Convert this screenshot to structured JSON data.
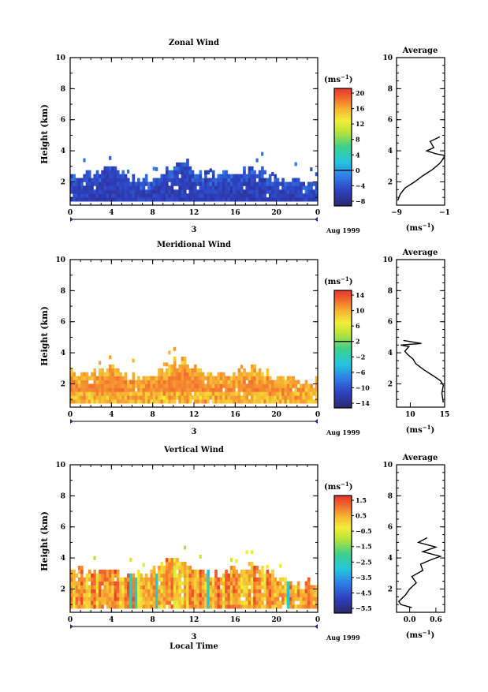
{
  "chart_data": [
    {
      "type": "heatmap",
      "title": "Zonal Wind",
      "ylabel": "Height (km)",
      "xticks": [
        "0",
        "4",
        "8",
        "12",
        "16",
        "20",
        "0"
      ],
      "yticks": [
        "2",
        "4",
        "6",
        "8",
        "10"
      ],
      "xlim": [
        0,
        24
      ],
      "ylim": [
        0.5,
        10
      ],
      "date_day": "3",
      "date_label": "Aug 1999",
      "colorbar": {
        "unit": "(ms",
        "unit_exp": "−1",
        "unit_close": ")",
        "ticks": [
          "20",
          "16",
          "12",
          "8",
          "4",
          "0",
          "−4",
          "−8"
        ],
        "range": [
          -10,
          22
        ],
        "zero_line": 0
      },
      "field": {
        "base_value": -7,
        "top_profile": [
          {
            "x": 0,
            "top": 2.6
          },
          {
            "x": 1.5,
            "top": 2.3
          },
          {
            "x": 2.5,
            "top": 2.5
          },
          {
            "x": 4,
            "top": 2.8
          },
          {
            "x": 5.5,
            "top": 2.3
          },
          {
            "x": 7,
            "top": 2.1
          },
          {
            "x": 8,
            "top": 2.2
          },
          {
            "x": 9,
            "top": 2.6
          },
          {
            "x": 10,
            "top": 2.8
          },
          {
            "x": 11,
            "top": 3.4
          },
          {
            "x": 12,
            "top": 2.6
          },
          {
            "x": 13.5,
            "top": 2.4
          },
          {
            "x": 15,
            "top": 2.4
          },
          {
            "x": 16.5,
            "top": 2.5
          },
          {
            "x": 18,
            "top": 2.7
          },
          {
            "x": 19.5,
            "top": 2.3
          },
          {
            "x": 21,
            "top": 2.0
          },
          {
            "x": 22.5,
            "top": 1.8
          },
          {
            "x": 24,
            "top": 1.9
          }
        ]
      },
      "average_profile": {
        "title": "Average",
        "xticks": [
          "−9",
          "−1"
        ],
        "xlim": [
          -9,
          -1
        ],
        "xlabel": "(ms",
        "xlabel_exp": "−1",
        "xlabel_close": ")",
        "yticks": [
          "2",
          "4",
          "6",
          "8",
          "10"
        ],
        "points": [
          {
            "v": -8.8,
            "h": 0.8
          },
          {
            "v": -8.4,
            "h": 1.2
          },
          {
            "v": -7.6,
            "h": 1.6
          },
          {
            "v": -6.0,
            "h": 2.0
          },
          {
            "v": -4.6,
            "h": 2.4
          },
          {
            "v": -3.0,
            "h": 2.8
          },
          {
            "v": -1.8,
            "h": 3.2
          },
          {
            "v": -1.2,
            "h": 3.5
          },
          {
            "v": -1.0,
            "h": 3.7
          },
          {
            "v": -2.4,
            "h": 3.8
          },
          {
            "v": -4.0,
            "h": 4.0
          },
          {
            "v": -2.8,
            "h": 4.2
          },
          {
            "v": -3.4,
            "h": 4.6
          },
          {
            "v": -1.8,
            "h": 4.9
          }
        ]
      }
    },
    {
      "type": "heatmap",
      "title": "Meridional Wind",
      "ylabel": "Height (km)",
      "xticks": [
        "0",
        "4",
        "8",
        "12",
        "16",
        "20",
        "0"
      ],
      "yticks": [
        "2",
        "4",
        "6",
        "8",
        "10"
      ],
      "xlim": [
        0,
        24
      ],
      "ylim": [
        0.5,
        10
      ],
      "date_day": "3",
      "date_label": "Aug 1999",
      "colorbar": {
        "unit": "(ms",
        "unit_exp": "−1",
        "unit_close": ")",
        "ticks": [
          "14",
          "10",
          "6",
          "2",
          "−2",
          "−6",
          "−10",
          "−14"
        ],
        "range": [
          -16,
          16
        ],
        "zero_line": 2
      },
      "field": {
        "base_value": 12,
        "top_profile": [
          {
            "x": 0,
            "top": 2.7
          },
          {
            "x": 1.5,
            "top": 2.4
          },
          {
            "x": 2.5,
            "top": 2.6
          },
          {
            "x": 4,
            "top": 2.9
          },
          {
            "x": 5.5,
            "top": 2.5
          },
          {
            "x": 7,
            "top": 2.3
          },
          {
            "x": 8,
            "top": 2.4
          },
          {
            "x": 9,
            "top": 2.8
          },
          {
            "x": 10,
            "top": 3.2
          },
          {
            "x": 11,
            "top": 3.6
          },
          {
            "x": 12,
            "top": 2.8
          },
          {
            "x": 13.5,
            "top": 2.5
          },
          {
            "x": 15,
            "top": 2.5
          },
          {
            "x": 16.5,
            "top": 2.6
          },
          {
            "x": 18,
            "top": 2.9
          },
          {
            "x": 19.5,
            "top": 2.5
          },
          {
            "x": 21,
            "top": 2.2
          },
          {
            "x": 22.5,
            "top": 2.0
          },
          {
            "x": 24,
            "top": 2.0
          }
        ]
      },
      "average_profile": {
        "title": "Average",
        "xticks": [
          "10",
          "15"
        ],
        "xlim": [
          8,
          15
        ],
        "xlabel": "(ms",
        "xlabel_exp": "−1",
        "xlabel_close": ")",
        "yticks": [
          "2",
          "4",
          "6",
          "8",
          "10"
        ],
        "points": [
          {
            "v": 14.8,
            "h": 0.8
          },
          {
            "v": 14.6,
            "h": 1.4
          },
          {
            "v": 14.8,
            "h": 1.9
          },
          {
            "v": 14.4,
            "h": 2.2
          },
          {
            "v": 13.4,
            "h": 2.5
          },
          {
            "v": 12.0,
            "h": 2.9
          },
          {
            "v": 10.8,
            "h": 3.3
          },
          {
            "v": 10.4,
            "h": 3.6
          },
          {
            "v": 9.6,
            "h": 3.9
          },
          {
            "v": 9.2,
            "h": 4.1
          },
          {
            "v": 9.8,
            "h": 4.4
          },
          {
            "v": 8.6,
            "h": 4.5
          },
          {
            "v": 11.6,
            "h": 4.6
          },
          {
            "v": 9.0,
            "h": 4.8
          }
        ]
      }
    },
    {
      "type": "heatmap",
      "title": "Vertical Wind",
      "ylabel": "Height (km)",
      "xlabel": "Local Time",
      "xticks": [
        "0",
        "4",
        "8",
        "12",
        "16",
        "20",
        "0"
      ],
      "yticks": [
        "2",
        "4",
        "6",
        "8",
        "10"
      ],
      "xlim": [
        0,
        24
      ],
      "ylim": [
        0.5,
        10
      ],
      "date_day": "3",
      "date_label": "Aug 1999",
      "colorbar": {
        "unit": "(ms",
        "unit_exp": "−1",
        "unit_close": ")",
        "ticks": [
          "1.5",
          "0.5",
          "−0.5",
          "−1.5",
          "−2.5",
          "−3.5",
          "−4.5",
          "−5.5"
        ],
        "range": [
          -6,
          2
        ]
      },
      "field": {
        "base_value": 0.6,
        "top_profile": [
          {
            "x": 0,
            "top": 3.5
          },
          {
            "x": 1.5,
            "top": 2.9
          },
          {
            "x": 2.5,
            "top": 3.0
          },
          {
            "x": 4,
            "top": 3.2
          },
          {
            "x": 5.5,
            "top": 2.6
          },
          {
            "x": 7,
            "top": 2.8
          },
          {
            "x": 8,
            "top": 3.0
          },
          {
            "x": 9,
            "top": 3.4
          },
          {
            "x": 10,
            "top": 3.9
          },
          {
            "x": 11,
            "top": 3.6
          },
          {
            "x": 12,
            "top": 3.0
          },
          {
            "x": 13.5,
            "top": 2.9
          },
          {
            "x": 15,
            "top": 3.0
          },
          {
            "x": 16.5,
            "top": 3.2
          },
          {
            "x": 18,
            "top": 3.3
          },
          {
            "x": 19.5,
            "top": 2.9
          },
          {
            "x": 21,
            "top": 2.4
          },
          {
            "x": 22.5,
            "top": 2.2
          },
          {
            "x": 24,
            "top": 2.3
          }
        ]
      },
      "average_profile": {
        "title": "Average",
        "xticks": [
          "0.0",
          "0.6"
        ],
        "xlim": [
          -0.3,
          0.8
        ],
        "xlabel": "(ms",
        "xlabel_exp": "−1",
        "xlabel_close": ")",
        "yticks": [
          "2",
          "4",
          "6",
          "8",
          "10"
        ],
        "points": [
          {
            "v": 0.05,
            "h": 0.8
          },
          {
            "v": -0.2,
            "h": 1.0
          },
          {
            "v": -0.25,
            "h": 1.2
          },
          {
            "v": -0.1,
            "h": 1.6
          },
          {
            "v": 0.0,
            "h": 2.0
          },
          {
            "v": 0.15,
            "h": 2.4
          },
          {
            "v": 0.05,
            "h": 2.8
          },
          {
            "v": 0.3,
            "h": 3.2
          },
          {
            "v": 0.25,
            "h": 3.6
          },
          {
            "v": 0.5,
            "h": 3.9
          },
          {
            "v": 0.7,
            "h": 4.1
          },
          {
            "v": 0.3,
            "h": 4.4
          },
          {
            "v": 0.6,
            "h": 4.7
          },
          {
            "v": 0.2,
            "h": 5.0
          },
          {
            "v": 0.4,
            "h": 5.3
          }
        ]
      }
    }
  ]
}
